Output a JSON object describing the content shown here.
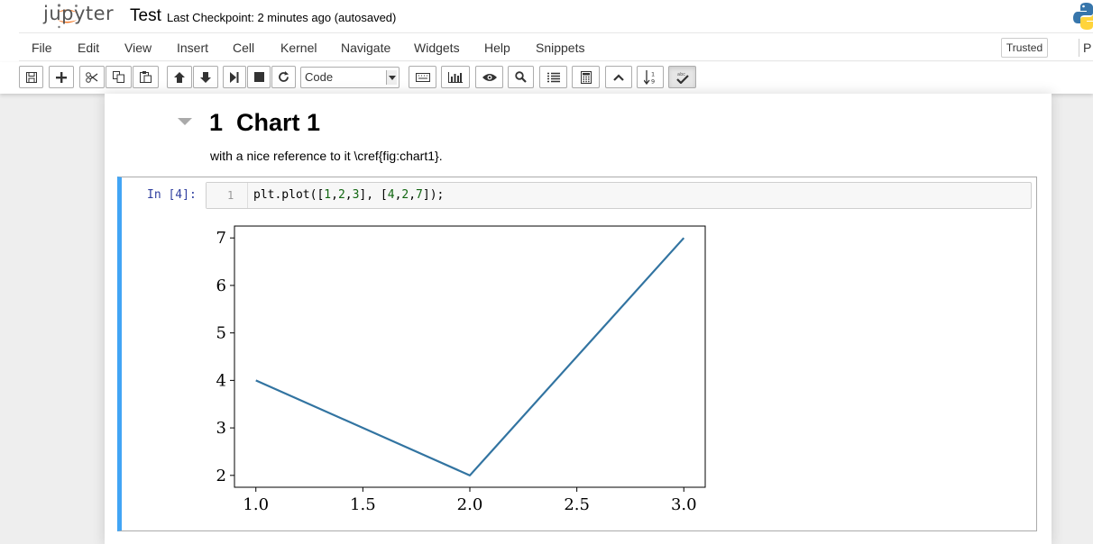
{
  "header": {
    "logo_text": "jupyter",
    "notebook_name": "Test",
    "checkpoint": "Last Checkpoint: 2 minutes ago (autosaved)"
  },
  "menubar": {
    "items": [
      "File",
      "Edit",
      "View",
      "Insert",
      "Cell",
      "Kernel",
      "Navigate",
      "Widgets",
      "Help",
      "Snippets"
    ],
    "trusted": "Trusted",
    "kernel_indicator": "P"
  },
  "toolbar": {
    "cell_type": "Code",
    "icons": [
      "save-icon",
      "plus-icon",
      "scissors-icon",
      "copy-icon",
      "paste-icon",
      "arrow-up-icon",
      "arrow-down-icon",
      "step-forward-icon",
      "stop-icon",
      "refresh-icon",
      "keyboard-icon",
      "bar-chart-icon",
      "eye-icon",
      "search-icon",
      "list-icon",
      "calculator-icon",
      "chevron-up-icon",
      "sort-numeric-icon",
      "spellcheck-icon"
    ]
  },
  "notebook": {
    "heading_number": "1",
    "heading_text": "Chart 1",
    "markdown": "with a nice reference to it \\cref{fig:chart1}.",
    "cell_prompt": "In [4]:",
    "line_number": "1",
    "code": {
      "prefix": "plt.plot([",
      "a1": "1",
      "a2": "2",
      "a3": "3",
      "mid": "], [",
      "b1": "4",
      "b2": "2",
      "b3": "7",
      "suffix": "]);"
    }
  },
  "colors": {
    "selected_cell_border": "#42a5f5",
    "line_color": "#3274a1"
  },
  "chart_data": {
    "type": "line",
    "x": [
      1,
      2,
      3
    ],
    "series": [
      {
        "values": [
          4,
          2,
          7
        ]
      }
    ],
    "xlim": [
      0.9,
      3.1
    ],
    "ylim": [
      1.75,
      7.25
    ],
    "xticks": [
      "1.0",
      "1.5",
      "2.0",
      "2.5",
      "3.0"
    ],
    "xtick_values": [
      1.0,
      1.5,
      2.0,
      2.5,
      3.0
    ],
    "yticks": [
      "2",
      "3",
      "4",
      "5",
      "6",
      "7"
    ],
    "ytick_values": [
      2,
      3,
      4,
      5,
      6,
      7
    ],
    "title": "",
    "xlabel": "",
    "ylabel": "",
    "grid": false
  }
}
